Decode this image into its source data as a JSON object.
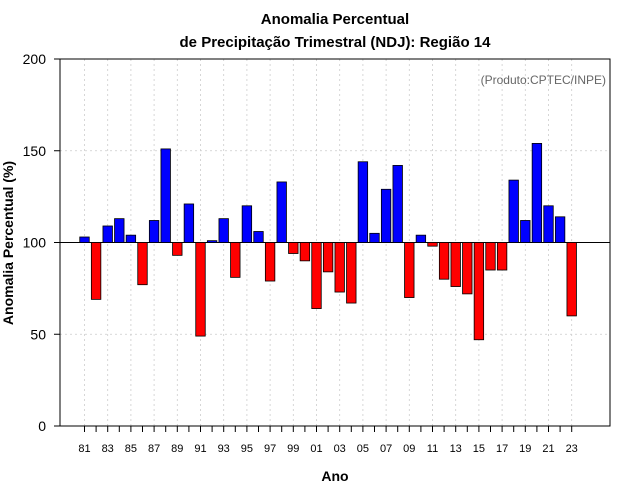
{
  "chart_data": {
    "type": "bar",
    "title_line1": "Anomalia Percentual",
    "title_line2": "de Precipitação Trimestral (NDJ): Região 14",
    "source_label": "(Produto:CPTEC/INPE)",
    "xlabel": "Ano",
    "ylabel": "Anomalia Percentual (%)",
    "ylim": [
      0,
      200
    ],
    "yticks": [
      0,
      50,
      100,
      150,
      200
    ],
    "baseline": 100,
    "grid": true,
    "colors": {
      "above": "#0000ff",
      "below": "#ff0000",
      "edge": "#000000",
      "grid": "#cccccc"
    },
    "categories": [
      "81",
      "82",
      "83",
      "84",
      "85",
      "86",
      "87",
      "88",
      "89",
      "90",
      "91",
      "92",
      "93",
      "94",
      "95",
      "96",
      "97",
      "98",
      "99",
      "00",
      "01",
      "02",
      "03",
      "04",
      "05",
      "06",
      "07",
      "08",
      "09",
      "10",
      "11",
      "12",
      "13",
      "14",
      "15",
      "16",
      "17",
      "18",
      "19",
      "20",
      "21",
      "22",
      "23"
    ],
    "xtick_labels": [
      "81",
      "83",
      "85",
      "87",
      "89",
      "91",
      "93",
      "95",
      "97",
      "99",
      "01",
      "03",
      "05",
      "07",
      "09",
      "11",
      "13",
      "15",
      "17",
      "19",
      "21",
      "23"
    ],
    "values": [
      103,
      69,
      109,
      113,
      104,
      77,
      112,
      151,
      93,
      121,
      49,
      101,
      113,
      81,
      120,
      106,
      79,
      133,
      94,
      90,
      64,
      84,
      73,
      67,
      144,
      105,
      129,
      142,
      70,
      104,
      98,
      80,
      76,
      72,
      47,
      85,
      85,
      134,
      112,
      154,
      120,
      114,
      60
    ]
  }
}
